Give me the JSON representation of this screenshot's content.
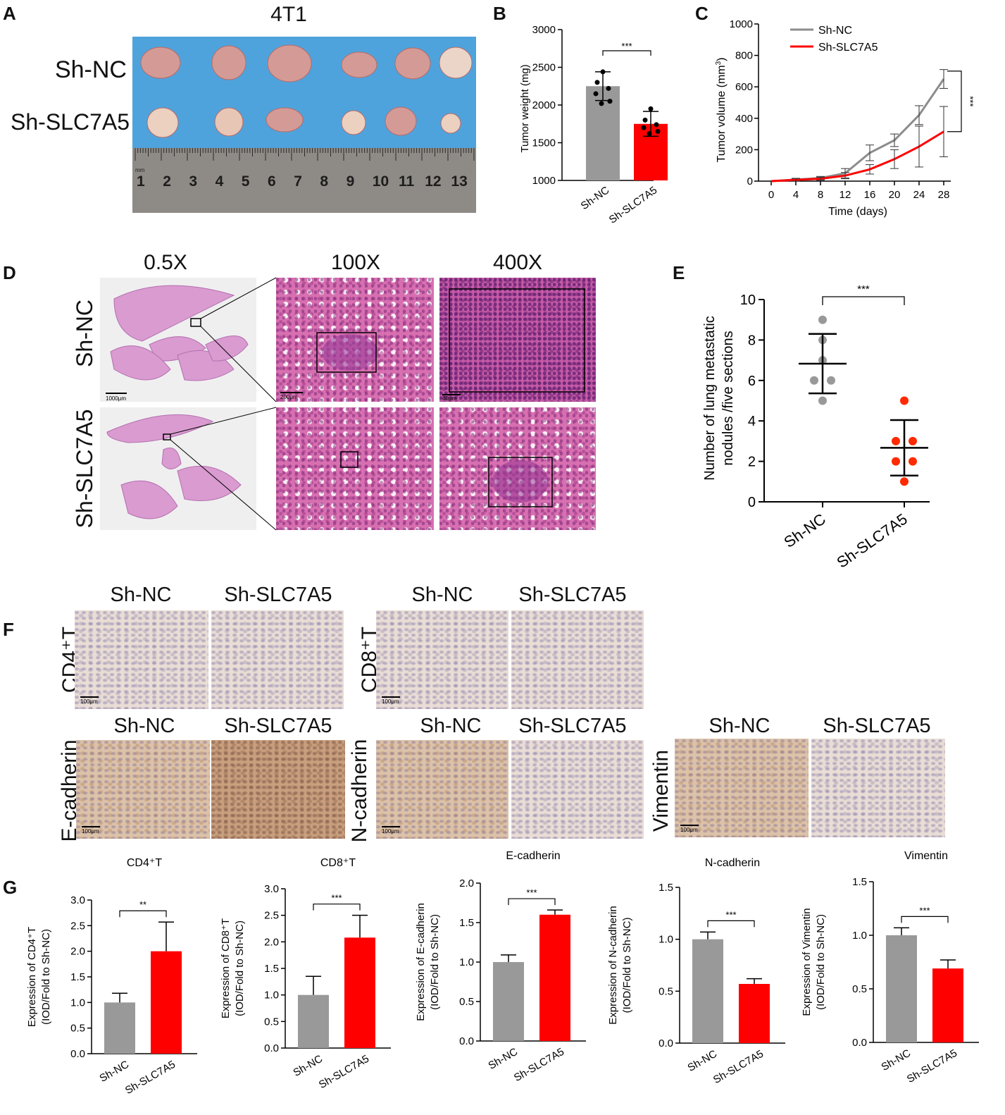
{
  "panels": {
    "A": {
      "letter": "A",
      "title": "4T1",
      "rows": [
        "Sh-NC",
        "Sh-SLC7A5"
      ],
      "ruler_numbers": [
        "1",
        "2",
        "3",
        "4",
        "5",
        "6",
        "7",
        "8",
        "9",
        "10",
        "11",
        "12",
        "13"
      ],
      "ruler_unit": "mm"
    },
    "B": {
      "letter": "B"
    },
    "C": {
      "letter": "C"
    },
    "D": {
      "letter": "D",
      "magnifications": [
        "0.5X",
        "100X",
        "400X"
      ],
      "rows": [
        "Sh-NC",
        "Sh-SLC7A5"
      ],
      "scalebars": [
        "1000μm",
        "200μm",
        "40μm"
      ]
    },
    "E": {
      "letter": "E"
    },
    "F": {
      "letter": "F",
      "groups": [
        "Sh-NC",
        "Sh-SLC7A5"
      ],
      "markers": [
        "CD4⁺T",
        "CD8⁺T",
        "E-cadherin",
        "N-cadherin",
        "Vimentin"
      ],
      "scalebar": "100μm"
    },
    "G": {
      "letter": "G"
    }
  },
  "chart_data": [
    {
      "id": "B",
      "type": "bar",
      "categories": [
        "Sh-NC",
        "Sh-SLC7A5"
      ],
      "values": [
        2250,
        1750
      ],
      "errors": [
        190,
        165
      ],
      "points": [
        [
          2440,
          2300,
          2220,
          2150,
          2050,
          2020
        ],
        [
          1950,
          1800,
          1740,
          1700,
          1650,
          1620
        ]
      ],
      "colors": [
        "#999999",
        "#ff0000"
      ],
      "ylabel": "Tumor weight (mg)",
      "ylim": [
        1000,
        3000
      ],
      "yticks": [
        1000,
        1500,
        2000,
        2500,
        3000
      ],
      "significance": "***"
    },
    {
      "id": "C",
      "type": "line",
      "x": [
        0,
        4,
        8,
        12,
        16,
        20,
        24,
        28
      ],
      "series": [
        {
          "name": "Sh-NC",
          "values": [
            0,
            10,
            20,
            50,
            180,
            260,
            420,
            650
          ],
          "errors": [
            5,
            8,
            10,
            30,
            50,
            40,
            60,
            60
          ],
          "color": "#8c8c8c"
        },
        {
          "name": "Sh-SLC7A5",
          "values": [
            0,
            8,
            15,
            35,
            75,
            140,
            220,
            315
          ],
          "errors": [
            5,
            8,
            10,
            20,
            30,
            60,
            130,
            160
          ],
          "color": "#ff0000"
        }
      ],
      "xlabel": "Time (days)",
      "ylabel": "Tumor volume (mm³)",
      "ylim": [
        0,
        1000
      ],
      "yticks": [
        0,
        200,
        400,
        600,
        800,
        1000
      ],
      "significance": "***",
      "legend": "top-left"
    },
    {
      "id": "E",
      "type": "scatter",
      "categories": [
        "Sh-NC",
        "Sh-SLC7A5"
      ],
      "means": [
        6.83,
        2.67
      ],
      "sd": [
        1.47,
        1.37
      ],
      "points": [
        [
          9,
          8,
          7,
          6,
          6,
          5
        ],
        [
          5,
          3,
          3,
          2,
          2,
          1
        ]
      ],
      "colors": [
        "#999999",
        "#ff2a00"
      ],
      "ylabel": "Number of lung metastatic nodules /five sections",
      "ylim": [
        0,
        10
      ],
      "yticks": [
        0,
        2,
        4,
        6,
        8,
        10
      ],
      "significance": "***"
    },
    {
      "id": "G1",
      "type": "bar",
      "title": "CD4⁺T",
      "categories": [
        "Sh-NC",
        "Sh-SLC7A5"
      ],
      "values": [
        1.0,
        2.0
      ],
      "errors": [
        0.18,
        0.57
      ],
      "colors": [
        "#999999",
        "#ff0000"
      ],
      "ylabel": "Expression of CD4⁺T (IOD/Fold to Sh-NC)",
      "ylim": [
        0,
        3.0
      ],
      "yticks": [
        "0.0",
        "0.5",
        "1.0",
        "1.5",
        "2.0",
        "2.5",
        "3.0"
      ],
      "significance": "**"
    },
    {
      "id": "G2",
      "type": "bar",
      "title": "CD8⁺T",
      "categories": [
        "Sh-NC",
        "Sh-SLC7A5"
      ],
      "values": [
        1.0,
        2.08
      ],
      "errors": [
        0.35,
        0.42
      ],
      "colors": [
        "#999999",
        "#ff0000"
      ],
      "ylabel": "Expression of CD8⁺T (IOD/Fold to Sh-NC)",
      "ylim": [
        0,
        3.0
      ],
      "yticks": [
        "0.0",
        "0.5",
        "1.0",
        "1.5",
        "2.0",
        "2.5",
        "3.0"
      ],
      "significance": "***"
    },
    {
      "id": "G3",
      "type": "bar",
      "title": "E-cadherin",
      "categories": [
        "Sh-NC",
        "Sh-SLC7A5"
      ],
      "values": [
        1.0,
        1.6
      ],
      "errors": [
        0.09,
        0.06
      ],
      "colors": [
        "#999999",
        "#ff0000"
      ],
      "ylabel": "Expression of E-cadherin (IOD/Fold to Sh-NC)",
      "ylim": [
        0,
        2.0
      ],
      "yticks": [
        "0.0",
        "0.5",
        "1.0",
        "1.5",
        "2.0"
      ],
      "significance": "***"
    },
    {
      "id": "G4",
      "type": "bar",
      "title": "N-cadherin",
      "categories": [
        "Sh-NC",
        "Sh-SLC7A5"
      ],
      "values": [
        1.0,
        0.57
      ],
      "errors": [
        0.07,
        0.05
      ],
      "colors": [
        "#999999",
        "#ff0000"
      ],
      "ylabel": "Expression of N-cadherin (IOD/Fold to Sh-NC)",
      "ylim": [
        0,
        1.5
      ],
      "yticks": [
        "0.0",
        "0.5",
        "1.0",
        "1.5"
      ],
      "significance": "***"
    },
    {
      "id": "G5",
      "type": "bar",
      "title": "Vimentin",
      "categories": [
        "Sh-NC",
        "Sh-SLC7A5"
      ],
      "values": [
        1.0,
        0.69
      ],
      "errors": [
        0.07,
        0.08
      ],
      "colors": [
        "#999999",
        "#ff0000"
      ],
      "ylabel": "Expression of Vimentin (IOD/Fold to Sh-NC)",
      "ylim": [
        0,
        1.5
      ],
      "yticks": [
        "0.0",
        "0.5",
        "1.0",
        "1.5"
      ],
      "significance": "***"
    }
  ]
}
